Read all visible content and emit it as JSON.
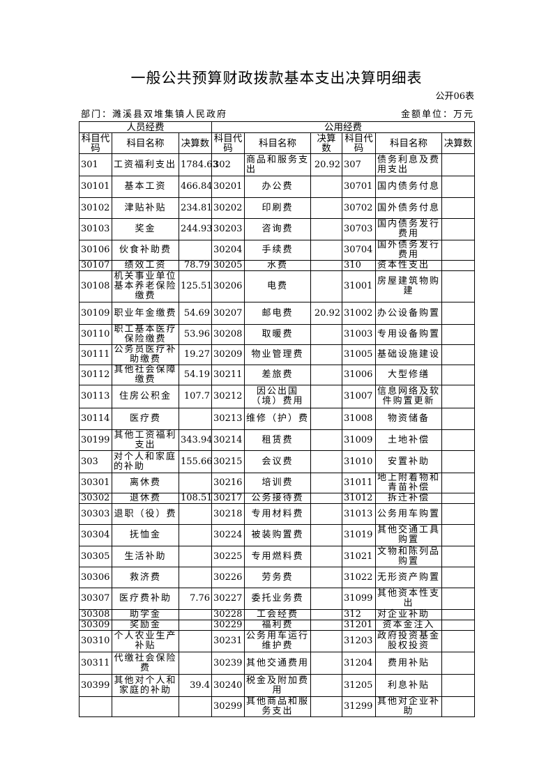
{
  "title": "一般公共预算财政拨款基本支出决算明细表",
  "form_no": "公开06表",
  "department": "部门：濉溪县双堆集镇人民政府",
  "unit": "金额单位：万元",
  "table": {
    "group_headers": [
      "人员经费",
      "公用经费"
    ],
    "columns": [
      "科目代码",
      "科目名称",
      "决算数",
      "科目代码",
      "科目名称",
      "决算数",
      "科目代码",
      "科目名称",
      "决算数"
    ],
    "rows": [
      [
        "301",
        "工资福利支出",
        "1784.63",
        "302",
        "商品和服务支出",
        "20.92",
        "307",
        "债务利息及费用支出",
        ""
      ],
      [
        "30101",
        "基本工资",
        "466.84",
        "30201",
        "办公费",
        "",
        "30701",
        "国内债务付息",
        ""
      ],
      [
        "30102",
        "津贴补贴",
        "234.81",
        "30202",
        "印刷费",
        "",
        "30702",
        "国外债务付息",
        ""
      ],
      [
        "30103",
        "奖金",
        "244.93",
        "30203",
        "咨询费",
        "",
        "30703",
        "国内债务发行费用",
        ""
      ],
      [
        "30106",
        "伙食补助费",
        "",
        "30204",
        "手续费",
        "",
        "30704",
        "国外债务发行费用",
        ""
      ],
      [
        "30107",
        "绩效工资",
        "78.79",
        "30205",
        "水费",
        "",
        "310",
        "资本性支出",
        ""
      ],
      [
        "30108",
        "机关事业单位基本养老保险缴费",
        "125.51",
        "30206",
        "电费",
        "",
        "31001",
        "房屋建筑物购建",
        ""
      ],
      [
        "30109",
        "职业年金缴费",
        "54.69",
        "30207",
        "邮电费",
        "20.92",
        "31002",
        "办公设备购置",
        ""
      ],
      [
        "30110",
        "职工基本医疗保险缴费",
        "53.96",
        "30208",
        "取暖费",
        "",
        "31003",
        "专用设备购置",
        ""
      ],
      [
        "30111",
        "公务员医疗补助缴费",
        "19.27",
        "30209",
        "物业管理费",
        "",
        "31005",
        "基础设施建设",
        ""
      ],
      [
        "30112",
        "其他社会保障缴费",
        "54.19",
        "30211",
        "差旅费",
        "",
        "31006",
        "大型修缮",
        ""
      ],
      [
        "30113",
        "住房公积金",
        "107.7",
        "30212",
        "因公出国（境）费用",
        "",
        "31007",
        "信息网络及软件购置更新",
        ""
      ],
      [
        "30114",
        "医疗费",
        "",
        "30213",
        "维修（护）费",
        "",
        "31008",
        "物资储备",
        ""
      ],
      [
        "30199",
        "其他工资福利支出",
        "343.94",
        "30214",
        "租赁费",
        "",
        "31009",
        "土地补偿",
        ""
      ],
      [
        "303",
        "对个人和家庭的补助",
        "155.66",
        "30215",
        "会议费",
        "",
        "31010",
        "安置补助",
        ""
      ],
      [
        "30301",
        "离休费",
        "",
        "30216",
        "培训费",
        "",
        "31011",
        "地上附着物和青苗补偿",
        ""
      ],
      [
        "30302",
        "退休费",
        "108.51",
        "30217",
        "公务接待费",
        "",
        "31012",
        "拆迁补偿",
        ""
      ],
      [
        "30303",
        "退职（役）费",
        "",
        "30218",
        "专用材料费",
        "",
        "31013",
        "公务用车购置",
        ""
      ],
      [
        "30304",
        "抚恤金",
        "",
        "30224",
        "被装购置费",
        "",
        "31019",
        "其他交通工具购置",
        ""
      ],
      [
        "30305",
        "生活补助",
        "",
        "30225",
        "专用燃料费",
        "",
        "31021",
        "文物和陈列品购置",
        ""
      ],
      [
        "30306",
        "救济费",
        "",
        "30226",
        "劳务费",
        "",
        "31022",
        "无形资产购置",
        ""
      ],
      [
        "30307",
        "医疗费补助",
        "7.76",
        "30227",
        "委托业务费",
        "",
        "31099",
        "其他资本性支出",
        ""
      ],
      [
        "30308",
        "助学金",
        "",
        "30228",
        "工会经费",
        "",
        "312",
        "对企业补助",
        ""
      ],
      [
        "30309",
        "奖励金",
        "",
        "30229",
        "福利费",
        "",
        "31201",
        "资本金注入",
        ""
      ],
      [
        "30310",
        "个人农业生产补贴",
        "",
        "30231",
        "公务用车运行维护费",
        "",
        "31203",
        "政府投资基金股权投资",
        ""
      ],
      [
        "30311",
        "代缴社会保险费",
        "",
        "30239",
        "其他交通费用",
        "",
        "31204",
        "费用补贴",
        ""
      ],
      [
        "30399",
        "其他对个人和家庭的补助",
        "39.4",
        "30240",
        "税金及附加费用",
        "",
        "31205",
        "利息补贴",
        ""
      ],
      [
        "",
        "",
        "",
        "30299",
        "其他商品和服务支出",
        "",
        "31299",
        "其他对企业补助",
        ""
      ]
    ]
  }
}
